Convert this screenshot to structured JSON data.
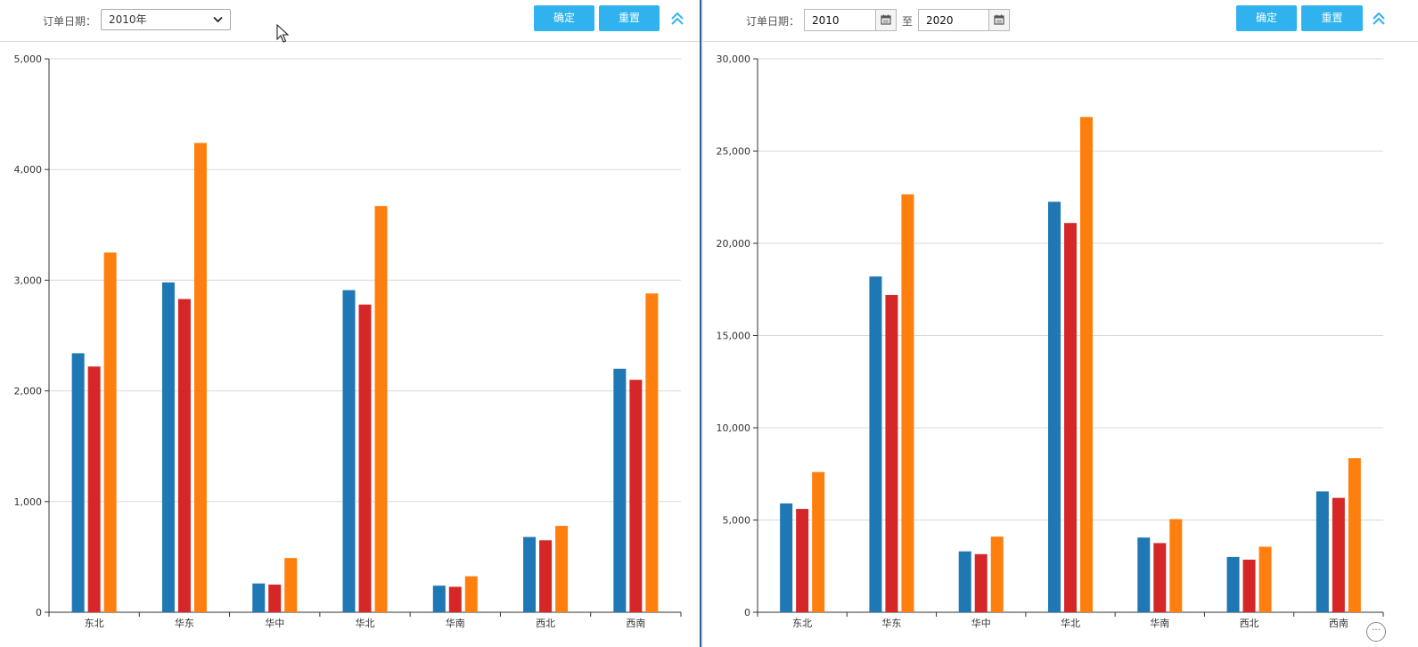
{
  "left_panel": {
    "filter_label": "订单日期：",
    "year_select_value": "2010年",
    "confirm_label": "确定",
    "reset_label": "重置"
  },
  "right_panel": {
    "filter_label": "订单日期：",
    "from_value": "2010",
    "to_label": "至",
    "to_value": "2020",
    "confirm_label": "确定",
    "reset_label": "重置"
  },
  "icons": {
    "dropdown": "chevron-down-icon",
    "calendar": "calendar-icon",
    "collapse": "double-chevron-up-icon",
    "pointer": "mouse-cursor-icon",
    "more": "more-icon"
  },
  "colors": {
    "series": [
      "#1f77b4",
      "#d62728",
      "#ff7f0e"
    ],
    "button": "#2fb2ee",
    "collapse_icon": "#2fb2ee"
  },
  "chart_data": [
    {
      "type": "bar",
      "categories": [
        "东北",
        "华东",
        "华中",
        "华北",
        "华南",
        "西北",
        "西南"
      ],
      "series": [
        {
          "values": [
            2340,
            2980,
            260,
            2910,
            240,
            680,
            2200
          ]
        },
        {
          "values": [
            2220,
            2830,
            250,
            2780,
            230,
            650,
            2100
          ]
        },
        {
          "values": [
            3250,
            4240,
            490,
            3670,
            325,
            780,
            2880
          ]
        }
      ],
      "ylim": [
        0,
        5000
      ],
      "yticks": [
        0,
        1000,
        2000,
        3000,
        4000,
        5000
      ],
      "ytick_labels": [
        "0",
        "1,000",
        "2,000",
        "3,000",
        "4,000",
        "5,000"
      ],
      "grid": true,
      "legend": "none"
    },
    {
      "type": "bar",
      "categories": [
        "东北",
        "华东",
        "华中",
        "华北",
        "华南",
        "西北",
        "西南"
      ],
      "series": [
        {
          "values": [
            5900,
            18200,
            3300,
            22250,
            4050,
            3000,
            6550
          ]
        },
        {
          "values": [
            5600,
            17200,
            3150,
            21100,
            3750,
            2850,
            6200
          ]
        },
        {
          "values": [
            7600,
            22650,
            4100,
            26850,
            5050,
            3550,
            8350
          ]
        }
      ],
      "ylim": [
        0,
        30000
      ],
      "yticks": [
        0,
        5000,
        10000,
        15000,
        20000,
        25000,
        30000
      ],
      "ytick_labels": [
        "0",
        "5,000",
        "10,000",
        "15,000",
        "20,000",
        "25,000",
        "30,000"
      ],
      "grid": true,
      "legend": "none"
    }
  ]
}
